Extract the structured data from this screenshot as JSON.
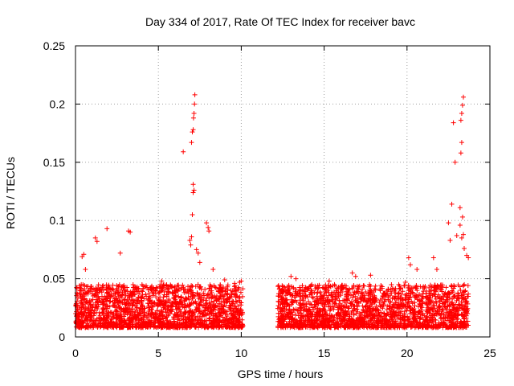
{
  "chart_data": {
    "type": "scatter",
    "title": "Day 334 of 2017, Rate Of TEC Index for receiver bavc",
    "xlabel": "GPS time / hours",
    "ylabel": "ROTI / TECUs",
    "xlim": [
      0,
      25
    ],
    "ylim": [
      0,
      0.25
    ],
    "x_ticks": [
      "0",
      "5",
      "10",
      "15",
      "20",
      "25"
    ],
    "y_ticks": [
      "0",
      "0.05",
      "0.1",
      "0.15",
      "0.2",
      "0.25"
    ],
    "grid": true,
    "marker": "+",
    "color": "#ff0000",
    "series": [
      {
        "name": "ROTI",
        "x": [
          6.5,
          7.0,
          7.05,
          7.1,
          7.12,
          7.15,
          7.18,
          7.2,
          7.1,
          7.15,
          7.05,
          7.1,
          7.0,
          6.9,
          6.95,
          7.3,
          7.4,
          7.5,
          7.9,
          8.0,
          8.05,
          8.3,
          1.2,
          1.3,
          1.9,
          2.7,
          3.2,
          3.3,
          0.4,
          0.5,
          0.6,
          5.2,
          9.0,
          9.6,
          9.9,
          10.0,
          20.1,
          20.2,
          20.6,
          21.6,
          21.8,
          22.5,
          22.7,
          22.8,
          22.9,
          23.0,
          23.2,
          23.25,
          23.3,
          23.35,
          23.4,
          23.3,
          23.25,
          23.35,
          23.2,
          23.3,
          23.4,
          23.45,
          23.6,
          23.7,
          22.6,
          13.0,
          13.3,
          14.2,
          15.3,
          16.7,
          16.9,
          17.8,
          19.5,
          19.9,
          12.3,
          12.5,
          12.8
        ],
        "y": [
          0.159,
          0.167,
          0.176,
          0.178,
          0.188,
          0.192,
          0.2,
          0.208,
          0.124,
          0.126,
          0.105,
          0.131,
          0.086,
          0.083,
          0.079,
          0.075,
          0.072,
          0.064,
          0.098,
          0.094,
          0.091,
          0.058,
          0.085,
          0.082,
          0.093,
          0.072,
          0.091,
          0.09,
          0.069,
          0.071,
          0.058,
          0.048,
          0.049,
          0.046,
          0.047,
          0.048,
          0.068,
          0.062,
          0.058,
          0.068,
          0.058,
          0.098,
          0.114,
          0.184,
          0.15,
          0.087,
          0.111,
          0.186,
          0.192,
          0.199,
          0.206,
          0.167,
          0.158,
          0.103,
          0.096,
          0.085,
          0.088,
          0.076,
          0.07,
          0.068,
          0.083,
          0.052,
          0.05,
          0.044,
          0.048,
          0.055,
          0.052,
          0.053,
          0.045,
          0.047,
          0.035,
          0.033,
          0.028
        ],
        "baseline_segments": [
          {
            "x_start": 0.0,
            "x_end": 10.1,
            "y_min": 0.008,
            "y_max": 0.045,
            "count": 1800
          },
          {
            "x_start": 12.2,
            "x_end": 23.7,
            "y_min": 0.008,
            "y_max": 0.045,
            "count": 2000
          }
        ]
      }
    ]
  }
}
